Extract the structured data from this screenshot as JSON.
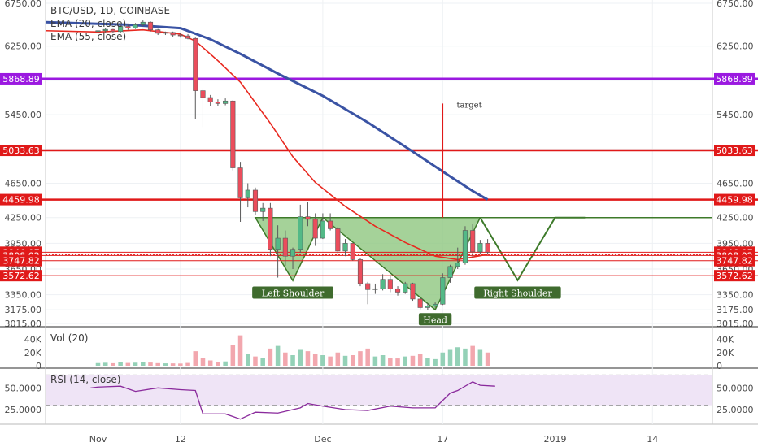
{
  "header": {
    "symbol_line": "BTC/USD, 1D, COINBASE",
    "ema20_line": "EMA (20, close)",
    "ema55_line": "EMA (55, close)"
  },
  "volume_pane": {
    "label": "Vol (20)"
  },
  "rsi_pane": {
    "label": "RSI (14, close)"
  },
  "colors": {
    "up": "#53b987",
    "down": "#eb4d5c",
    "vol_up": "#94d1b7",
    "vol_down": "#f2a7ae",
    "ema20": "#e8281f",
    "ema55": "#3a53a4",
    "level_red": "#e01919",
    "level_purple": "#9b19e0",
    "pattern_fill": "#8fc77f",
    "pattern_line": "#3d7a2a",
    "rsi_line": "#8a2a9c",
    "rsi_band": "#efe4f6"
  },
  "chart_data": {
    "type": "candlestick",
    "title": "BTC/USD, 1D, COINBASE",
    "price_axis": {
      "ticks": [
        "6750.00",
        "6250.00",
        "5850.00",
        "5450.00",
        "5050.00",
        "4650.00",
        "4250.00",
        "3950.00",
        "3650.00",
        "3350.00",
        "3175.00",
        "3015.00"
      ],
      "ylim": [
        3015,
        6750
      ]
    },
    "time_axis": {
      "ticks": [
        "Nov",
        "12",
        "Dec",
        "17",
        "2019",
        "14"
      ],
      "range": [
        "2018-10-25",
        "2019-01-22"
      ]
    },
    "candles": [
      {
        "d": "2018-11-01",
        "o": 6420,
        "h": 6450,
        "l": 6390,
        "c": 6430
      },
      {
        "d": "2018-11-02",
        "o": 6430,
        "h": 6460,
        "l": 6400,
        "c": 6445
      },
      {
        "d": "2018-11-03",
        "o": 6445,
        "h": 6450,
        "l": 6410,
        "c": 6420
      },
      {
        "d": "2018-11-04",
        "o": 6420,
        "h": 6500,
        "l": 6400,
        "c": 6480
      },
      {
        "d": "2018-11-05",
        "o": 6480,
        "h": 6500,
        "l": 6440,
        "c": 6460
      },
      {
        "d": "2018-11-06",
        "o": 6460,
        "h": 6520,
        "l": 6450,
        "c": 6500
      },
      {
        "d": "2018-11-07",
        "o": 6500,
        "h": 6550,
        "l": 6480,
        "c": 6530
      },
      {
        "d": "2018-11-08",
        "o": 6530,
        "h": 6540,
        "l": 6420,
        "c": 6440
      },
      {
        "d": "2018-11-09",
        "o": 6440,
        "h": 6450,
        "l": 6380,
        "c": 6400
      },
      {
        "d": "2018-11-10",
        "o": 6400,
        "h": 6420,
        "l": 6380,
        "c": 6410
      },
      {
        "d": "2018-11-11",
        "o": 6410,
        "h": 6420,
        "l": 6360,
        "c": 6380
      },
      {
        "d": "2018-11-12",
        "o": 6380,
        "h": 6400,
        "l": 6350,
        "c": 6370
      },
      {
        "d": "2018-11-13",
        "o": 6370,
        "h": 6390,
        "l": 6330,
        "c": 6340
      },
      {
        "d": "2018-11-14",
        "o": 6340,
        "h": 6350,
        "l": 5400,
        "c": 5730
      },
      {
        "d": "2018-11-15",
        "o": 5730,
        "h": 5760,
        "l": 5300,
        "c": 5650
      },
      {
        "d": "2018-11-16",
        "o": 5650,
        "h": 5680,
        "l": 5550,
        "c": 5600
      },
      {
        "d": "2018-11-17",
        "o": 5600,
        "h": 5630,
        "l": 5550,
        "c": 5580
      },
      {
        "d": "2018-11-18",
        "o": 5580,
        "h": 5640,
        "l": 5560,
        "c": 5610
      },
      {
        "d": "2018-11-19",
        "o": 5610,
        "h": 5620,
        "l": 4800,
        "c": 4830
      },
      {
        "d": "2018-11-20",
        "o": 4830,
        "h": 4900,
        "l": 4200,
        "c": 4480
      },
      {
        "d": "2018-11-21",
        "o": 4480,
        "h": 4650,
        "l": 4370,
        "c": 4570
      },
      {
        "d": "2018-11-22",
        "o": 4570,
        "h": 4600,
        "l": 4280,
        "c": 4320
      },
      {
        "d": "2018-11-23",
        "o": 4320,
        "h": 4420,
        "l": 4210,
        "c": 4360
      },
      {
        "d": "2018-11-24",
        "o": 4360,
        "h": 4420,
        "l": 3800,
        "c": 3880
      },
      {
        "d": "2018-11-25",
        "o": 3880,
        "h": 4160,
        "l": 3550,
        "c": 4010
      },
      {
        "d": "2018-11-26",
        "o": 4010,
        "h": 4100,
        "l": 3690,
        "c": 3800
      },
      {
        "d": "2018-11-27",
        "o": 3800,
        "h": 3900,
        "l": 3650,
        "c": 3880
      },
      {
        "d": "2018-11-28",
        "o": 3880,
        "h": 4400,
        "l": 3840,
        "c": 4260
      },
      {
        "d": "2018-11-29",
        "o": 4260,
        "h": 4430,
        "l": 4150,
        "c": 4230
      },
      {
        "d": "2018-11-30",
        "o": 4230,
        "h": 4300,
        "l": 3920,
        "c": 4010
      },
      {
        "d": "2018-12-01",
        "o": 4010,
        "h": 4300,
        "l": 4000,
        "c": 4210
      },
      {
        "d": "2018-12-02",
        "o": 4210,
        "h": 4300,
        "l": 4100,
        "c": 4120
      },
      {
        "d": "2018-12-03",
        "o": 4120,
        "h": 4140,
        "l": 3820,
        "c": 3860
      },
      {
        "d": "2018-12-04",
        "o": 3860,
        "h": 4000,
        "l": 3800,
        "c": 3950
      },
      {
        "d": "2018-12-05",
        "o": 3950,
        "h": 3950,
        "l": 3750,
        "c": 3760
      },
      {
        "d": "2018-12-06",
        "o": 3760,
        "h": 3780,
        "l": 3450,
        "c": 3480
      },
      {
        "d": "2018-12-07",
        "o": 3480,
        "h": 3500,
        "l": 3240,
        "c": 3410
      },
      {
        "d": "2018-12-08",
        "o": 3410,
        "h": 3480,
        "l": 3360,
        "c": 3420
      },
      {
        "d": "2018-12-09",
        "o": 3420,
        "h": 3590,
        "l": 3400,
        "c": 3530
      },
      {
        "d": "2018-12-10",
        "o": 3530,
        "h": 3580,
        "l": 3380,
        "c": 3420
      },
      {
        "d": "2018-12-11",
        "o": 3420,
        "h": 3450,
        "l": 3340,
        "c": 3380
      },
      {
        "d": "2018-12-12",
        "o": 3380,
        "h": 3500,
        "l": 3360,
        "c": 3480
      },
      {
        "d": "2018-12-13",
        "o": 3480,
        "h": 3490,
        "l": 3280,
        "c": 3300
      },
      {
        "d": "2018-12-14",
        "o": 3300,
        "h": 3330,
        "l": 3180,
        "c": 3200
      },
      {
        "d": "2018-12-15",
        "o": 3200,
        "h": 3250,
        "l": 3170,
        "c": 3220
      },
      {
        "d": "2018-12-16",
        "o": 3220,
        "h": 3260,
        "l": 3200,
        "c": 3240
      },
      {
        "d": "2018-12-17",
        "o": 3240,
        "h": 3600,
        "l": 3230,
        "c": 3550
      },
      {
        "d": "2018-12-18",
        "o": 3550,
        "h": 3700,
        "l": 3490,
        "c": 3680
      },
      {
        "d": "2018-12-19",
        "o": 3680,
        "h": 3900,
        "l": 3650,
        "c": 3720
      },
      {
        "d": "2018-12-20",
        "o": 3720,
        "h": 4150,
        "l": 3700,
        "c": 4100
      },
      {
        "d": "2018-12-21",
        "o": 4100,
        "h": 4180,
        "l": 3780,
        "c": 3850
      },
      {
        "d": "2018-12-22",
        "o": 3850,
        "h": 3990,
        "l": 3820,
        "c": 3950
      },
      {
        "d": "2018-12-23",
        "o": 3950,
        "h": 4000,
        "l": 3830,
        "c": 3846
      }
    ],
    "ema20": [
      [
        "2018-10-25",
        6430
      ],
      [
        "2018-11-01",
        6415
      ],
      [
        "2018-11-07",
        6440
      ],
      [
        "2018-11-12",
        6390
      ],
      [
        "2018-11-14",
        6310
      ],
      [
        "2018-11-17",
        6080
      ],
      [
        "2018-11-20",
        5830
      ],
      [
        "2018-11-24",
        5350
      ],
      [
        "2018-11-27",
        4960
      ],
      [
        "2018-11-30",
        4660
      ],
      [
        "2018-12-04",
        4380
      ],
      [
        "2018-12-08",
        4150
      ],
      [
        "2018-12-12",
        3960
      ],
      [
        "2018-12-16",
        3800
      ],
      [
        "2018-12-19",
        3760
      ],
      [
        "2018-12-23",
        3820
      ]
    ],
    "ema55": [
      [
        "2018-10-25",
        6530
      ],
      [
        "2018-11-05",
        6500
      ],
      [
        "2018-11-12",
        6460
      ],
      [
        "2018-11-16",
        6330
      ],
      [
        "2018-11-20",
        6160
      ],
      [
        "2018-11-25",
        5930
      ],
      [
        "2018-12-01",
        5670
      ],
      [
        "2018-12-07",
        5360
      ],
      [
        "2018-12-13",
        5020
      ],
      [
        "2018-12-18",
        4730
      ],
      [
        "2018-12-21",
        4560
      ],
      [
        "2018-12-23",
        4460
      ]
    ],
    "levels": [
      {
        "price": 5868.89,
        "label": "5868.89",
        "color": "#9b19e0",
        "width": 3
      },
      {
        "price": 5033.63,
        "label": "5033.63",
        "color": "#e01919",
        "width": 2.5
      },
      {
        "price": 4459.98,
        "label": "4459.98",
        "color": "#e01919",
        "width": 2.5
      },
      {
        "price": 3846.07,
        "label": "3846.07",
        "color": "#e01919",
        "width": 1
      },
      {
        "price": 3808.02,
        "label": "3808.02",
        "color": "#e01919",
        "width": 1
      },
      {
        "price": 3747.82,
        "label": "3747.82",
        "color": "#e01919",
        "width": 1
      },
      {
        "price": 3572.62,
        "label": "3572.62",
        "color": "#e01919",
        "width": 1
      }
    ],
    "neckline": {
      "price": 4250,
      "from": "2018-11-24",
      "to": "2019-01-22"
    },
    "pattern_points": [
      [
        "2018-11-22",
        4250
      ],
      [
        "2018-11-27",
        3515
      ],
      [
        "2018-12-01",
        4250
      ],
      [
        "2018-12-16",
        3175
      ],
      [
        "2018-12-22",
        4250
      ]
    ],
    "projection": [
      [
        "2018-12-22",
        4250
      ],
      [
        "2018-12-27",
        3520
      ],
      [
        "2019-01-01",
        4250
      ]
    ],
    "annotations": [
      {
        "text": "Left Shoulder",
        "d": "2018-11-27",
        "p": 3370
      },
      {
        "text": "Head",
        "d": "2018-12-16",
        "p": 3060
      },
      {
        "text": "Right Shoulder",
        "d": "2018-12-27",
        "p": 3370
      },
      {
        "text": "target",
        "d": "2018-12-18",
        "p": 5530
      }
    ],
    "target_line": {
      "d": "2018-12-17",
      "from": 4250,
      "to": 5580
    },
    "volume": {
      "ticks": [
        "40K",
        "20K",
        "0"
      ],
      "ylim": [
        0,
        48000
      ],
      "values": [
        4000,
        4500,
        3800,
        5000,
        4200,
        4600,
        5200,
        4800,
        3900,
        3600,
        3500,
        3300,
        4200,
        22000,
        12000,
        8000,
        6000,
        6500,
        32000,
        46000,
        18000,
        14000,
        12000,
        26000,
        30000,
        20000,
        16000,
        24000,
        22000,
        18000,
        16000,
        14000,
        20000,
        15000,
        16000,
        22000,
        26000,
        14000,
        16000,
        12000,
        11000,
        14000,
        15000,
        18000,
        12000,
        10000,
        20000,
        24000,
        28000,
        26000,
        30000,
        24000,
        20000
      ]
    },
    "rsi": {
      "ticks": [
        "50.0000",
        "25.0000"
      ],
      "ylim": [
        10,
        70
      ],
      "band": [
        30,
        65
      ],
      "values": [
        [
          -1,
          50
        ],
        [
          0,
          51
        ],
        [
          3,
          52
        ],
        [
          5,
          46
        ],
        [
          8,
          50
        ],
        [
          11,
          48
        ],
        [
          13,
          47
        ],
        [
          14,
          20
        ],
        [
          17,
          20
        ],
        [
          19,
          14
        ],
        [
          21,
          22
        ],
        [
          24,
          21
        ],
        [
          27,
          27
        ],
        [
          28,
          32
        ],
        [
          30,
          29
        ],
        [
          33,
          25
        ],
        [
          36,
          24
        ],
        [
          39,
          29
        ],
        [
          42,
          27
        ],
        [
          45,
          27
        ],
        [
          47,
          44
        ],
        [
          48,
          47
        ],
        [
          50,
          57
        ],
        [
          51,
          53
        ],
        [
          53,
          52
        ]
      ]
    }
  }
}
